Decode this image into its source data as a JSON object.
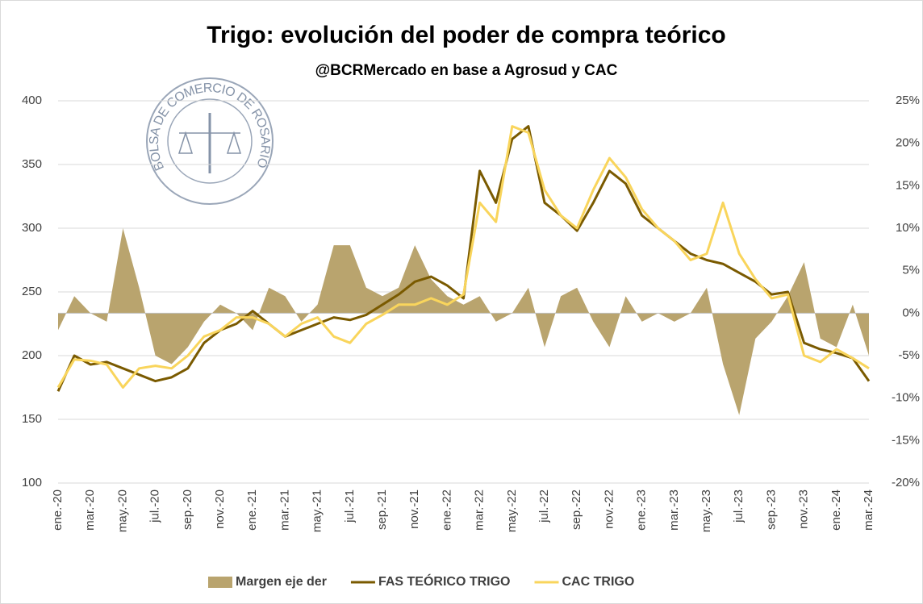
{
  "chart_data": {
    "type": "line",
    "title": "Trigo: evolución del poder de compra teórico",
    "subtitle": "@BCRMercado en base a Agrosud y CAC",
    "annotation": "BOLSA DE COMERCIO DE ROSARIO",
    "categories": [
      "ene.-20",
      null,
      "mar.-20",
      null,
      "may.-20",
      null,
      "jul.-20",
      null,
      "sep.-20",
      null,
      "nov.-20",
      null,
      "ene.-21",
      null,
      "mar.-21",
      null,
      "may.-21",
      null,
      "jul.-21",
      null,
      "sep.-21",
      null,
      "nov.-21",
      null,
      "ene.-22",
      null,
      "mar.-22",
      null,
      "may.-22",
      null,
      "jul.-22",
      null,
      "sep.-22",
      null,
      "nov.-22",
      null,
      "ene.-23",
      null,
      "mar.-23",
      null,
      "may.-23",
      null,
      "jul.-23",
      null,
      "sep.-23",
      null,
      "nov.-23",
      null,
      "ene.-24",
      null,
      "mar.-24"
    ],
    "series": [
      {
        "name": "Margen eje der",
        "color": "#b9a46e",
        "axis": "y2",
        "kind": "area",
        "values": [
          -2,
          2,
          0,
          -1,
          10,
          3,
          -5,
          -6,
          -4,
          -1,
          1,
          0,
          -2,
          3,
          2,
          -1,
          1,
          8,
          8,
          3,
          2,
          3,
          8,
          4,
          2,
          1,
          2,
          -1,
          0,
          3,
          -4,
          2,
          3,
          -1,
          -4,
          2,
          -1,
          0,
          -1,
          0,
          3,
          -6,
          -12,
          -3,
          -1,
          2,
          6,
          -3,
          -4,
          1,
          -5
        ]
      },
      {
        "name": "FAS TEÓRICO TRIGO",
        "color": "#7a5a00",
        "values": [
          172,
          200,
          193,
          195,
          190,
          185,
          180,
          183,
          190,
          210,
          220,
          225,
          235,
          225,
          215,
          220,
          225,
          230,
          228,
          232,
          240,
          248,
          258,
          262,
          255,
          245,
          345,
          320,
          370,
          380,
          320,
          310,
          298,
          320,
          345,
          335,
          310,
          300,
          290,
          280,
          275,
          272,
          265,
          258,
          248,
          250,
          210,
          205,
          202,
          198,
          180
        ]
      },
      {
        "name": "CAC TRIGO",
        "color": "#f9d55c",
        "values": [
          175,
          197,
          196,
          193,
          175,
          190,
          192,
          190,
          200,
          215,
          220,
          230,
          230,
          225,
          215,
          225,
          230,
          215,
          210,
          225,
          232,
          240,
          240,
          245,
          240,
          248,
          320,
          305,
          380,
          375,
          330,
          310,
          300,
          330,
          355,
          340,
          315,
          300,
          290,
          275,
          280,
          320,
          280,
          260,
          245,
          248,
          200,
          195,
          205,
          198,
          190
        ]
      }
    ],
    "ylim": [
      100,
      400
    ],
    "yticks": [
      100,
      150,
      200,
      250,
      300,
      350,
      400
    ],
    "y2lim": [
      -20,
      25
    ],
    "y2ticks": [
      {
        "value": -20,
        "label": "-20%"
      },
      {
        "value": -15,
        "label": "-15%"
      },
      {
        "value": -10,
        "label": "-10%"
      },
      {
        "value": -5,
        "label": "-5%"
      },
      {
        "value": 0,
        "label": "0%"
      },
      {
        "value": 5,
        "label": "5%"
      },
      {
        "value": 10,
        "label": "10%"
      },
      {
        "value": 15,
        "label": "15%"
      },
      {
        "value": 20,
        "label": "20%"
      },
      {
        "value": 25,
        "label": "25%"
      }
    ],
    "grid": true,
    "legend": "bottom"
  }
}
